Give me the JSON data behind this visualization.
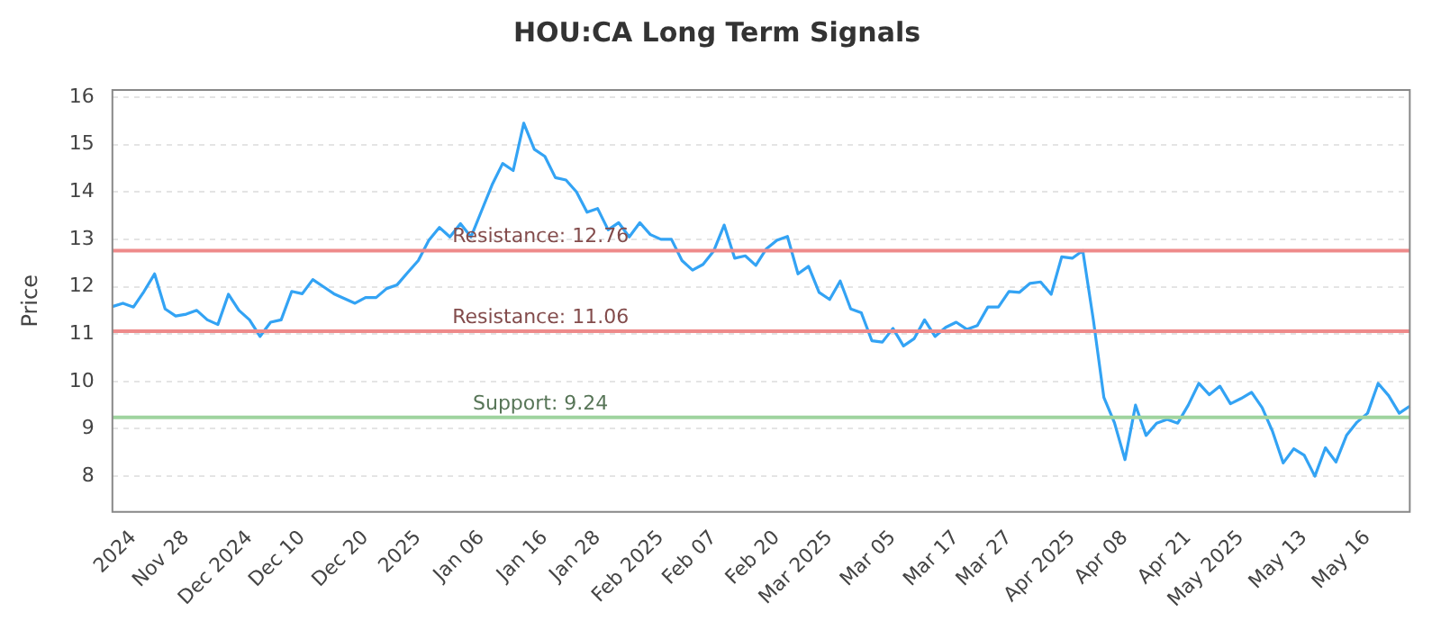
{
  "chart_data": {
    "type": "line",
    "title": "HOU:CA Long Term Signals",
    "ylabel": "Price",
    "categories": [
      null,
      null,
      "2024",
      null,
      null,
      null,
      null,
      "Nov 28",
      null,
      null,
      null,
      null,
      null,
      "Dec 2024",
      null,
      null,
      null,
      null,
      "Dec 10",
      null,
      null,
      null,
      null,
      null,
      "Dec 20",
      null,
      null,
      null,
      null,
      "2025",
      null,
      null,
      null,
      null,
      null,
      "Jan 06",
      null,
      null,
      null,
      null,
      null,
      "Jan 16",
      null,
      null,
      null,
      null,
      "Jan 28",
      null,
      null,
      null,
      null,
      null,
      "Feb 2025",
      null,
      null,
      null,
      null,
      "Feb 07",
      null,
      null,
      null,
      null,
      null,
      "Feb 20",
      null,
      null,
      null,
      null,
      "Mar 2025",
      null,
      null,
      null,
      null,
      null,
      "Mar 05",
      null,
      null,
      null,
      null,
      null,
      "Mar 17",
      null,
      null,
      null,
      null,
      "Mar 27",
      null,
      null,
      null,
      null,
      null,
      "Apr 2025",
      null,
      null,
      null,
      null,
      "Apr 08",
      null,
      null,
      null,
      null,
      null,
      "Apr 21",
      null,
      null,
      null,
      null,
      "May 2025",
      null,
      null,
      null,
      null,
      null,
      "May 13",
      null,
      null,
      null,
      null,
      null,
      "May 16",
      null,
      null,
      null,
      null
    ],
    "series": [
      {
        "color": "#33a3f4",
        "values": [
          11.58,
          11.65,
          11.57,
          11.9,
          12.27,
          11.53,
          11.38,
          11.42,
          11.5,
          11.3,
          11.2,
          11.84,
          11.5,
          11.3,
          10.95,
          11.25,
          11.3,
          11.9,
          11.85,
          12.15,
          12.0,
          11.85,
          11.75,
          11.65,
          11.77,
          11.77,
          11.96,
          12.04,
          12.3,
          12.55,
          12.98,
          13.25,
          13.05,
          13.33,
          13.05,
          13.6,
          14.15,
          14.6,
          14.45,
          15.45,
          14.9,
          14.75,
          14.3,
          14.25,
          14.0,
          13.57,
          13.65,
          13.2,
          13.35,
          13.05,
          13.35,
          13.1,
          13.0,
          13.0,
          12.55,
          12.35,
          12.47,
          12.75,
          13.3,
          12.6,
          12.65,
          12.45,
          12.8,
          12.98,
          13.06,
          12.27,
          12.43,
          11.88,
          11.73,
          12.12,
          11.53,
          11.45,
          10.86,
          10.83,
          11.12,
          10.75,
          10.9,
          11.3,
          10.95,
          11.14,
          11.25,
          11.1,
          11.18,
          11.57,
          11.57,
          11.9,
          11.88,
          12.07,
          12.1,
          11.84,
          12.63,
          12.6,
          12.76,
          11.3,
          9.66,
          9.13,
          8.35,
          9.5,
          8.86,
          9.12,
          9.2,
          9.12,
          9.5,
          9.96,
          9.72,
          9.9,
          9.53,
          9.64,
          9.77,
          9.45,
          8.94,
          8.28,
          8.58,
          8.44,
          8.0,
          8.6,
          8.3,
          8.86,
          9.14,
          9.33,
          9.96,
          9.7,
          9.33,
          9.48
        ]
      }
    ],
    "ylim": [
      7.25,
      16.15
    ],
    "yticks": [
      8,
      9,
      10,
      11,
      12,
      13,
      14,
      15,
      16
    ],
    "grid": "y",
    "legend": false,
    "marker": "none",
    "line_style": "solid",
    "ref_lines": [
      {
        "axis": "y",
        "value": 12.76,
        "label": "Resistance: 12.76",
        "color": "#ee8a8a"
      },
      {
        "axis": "y",
        "value": 11.06,
        "label": "Resistance: 11.06",
        "color": "#ee8a8a"
      },
      {
        "axis": "y",
        "value": 9.24,
        "label": "Support: 9.24",
        "color": "#9fd49f"
      }
    ]
  }
}
